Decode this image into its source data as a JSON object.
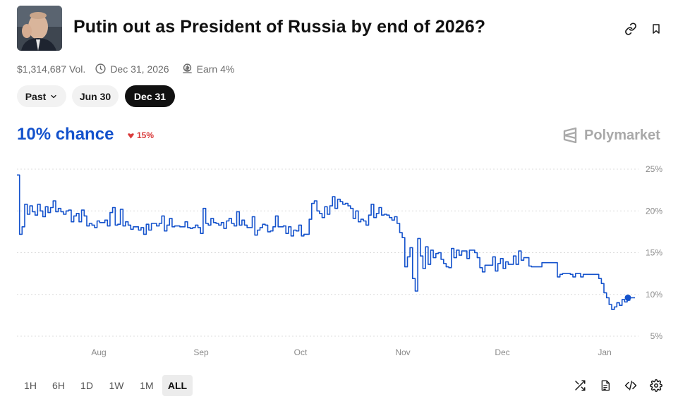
{
  "market": {
    "title": "Putin out as President of Russia by end of 2026?",
    "volume": "$1,314,687 Vol.",
    "end_date": "Dec 31, 2026",
    "earn": "Earn 4%"
  },
  "date_tabs": [
    {
      "label": "Past",
      "active": false
    },
    {
      "label": "Jun 30",
      "active": false
    },
    {
      "label": "Dec 31",
      "active": true
    }
  ],
  "probability": {
    "chance_text": "10% chance",
    "delta_text": "15%",
    "delta_direction": "down"
  },
  "brand": "Polymarket",
  "time_ranges": [
    {
      "label": "1H",
      "active": false
    },
    {
      "label": "6H",
      "active": false
    },
    {
      "label": "1D",
      "active": false
    },
    {
      "label": "1W",
      "active": false
    },
    {
      "label": "1M",
      "active": false
    },
    {
      "label": "ALL",
      "active": true
    }
  ],
  "colors": {
    "line": "#1452cc",
    "delta": "#d93a3a",
    "active_tab": "#111111"
  },
  "icons": {
    "copy_link": "link-icon",
    "bookmark": "bookmark-icon",
    "shuffle": "shuffle-icon",
    "document": "document-icon",
    "embed": "code-icon",
    "settings": "gear-icon"
  },
  "chart_data": {
    "type": "line",
    "title": "",
    "xlabel": "",
    "ylabel": "",
    "x_ticks": [
      "Aug",
      "Sep",
      "Oct",
      "Nov",
      "Dec",
      "Jan"
    ],
    "y_ticks": [
      "25%",
      "20%",
      "15%",
      "10%",
      "5%"
    ],
    "ylim": [
      5,
      25
    ],
    "grid": true,
    "series": [
      {
        "values": [
          24.3,
          17.2,
          18.1,
          20.8,
          19.6,
          20.6,
          19.9,
          19.5,
          20.8,
          20.0,
          19.3,
          20.5,
          19.8,
          20.4,
          21.2,
          19.9,
          20.3,
          19.9,
          19.6,
          20.0,
          20.1,
          18.7,
          19.4,
          19.7,
          18.7,
          20.1,
          19.4,
          18.2,
          18.5,
          18.3,
          18.0,
          18.8,
          18.6,
          18.6,
          18.9,
          18.2,
          19.8,
          20.4,
          18.3,
          18.4,
          20.2,
          18.2,
          18.7,
          18.3,
          17.8,
          18.1,
          18.1,
          17.7,
          18.0,
          17.2,
          18.4,
          17.7,
          18.5,
          18.5,
          18.2,
          18.5,
          19.4,
          17.6,
          18.3,
          19.1,
          18.1,
          18.2,
          18.2,
          18.1,
          18.1,
          18.7,
          18.0,
          17.9,
          18.0,
          18.3,
          18.0,
          17.3,
          20.3,
          18.5,
          18.3,
          19.1,
          18.6,
          18.5,
          18.3,
          18.6,
          17.9,
          18.8,
          19.1,
          18.5,
          18.2,
          19.9,
          18.3,
          18.9,
          18.3,
          18.0,
          18.0,
          19.3,
          17.1,
          17.7,
          18.0,
          18.4,
          18.3,
          17.5,
          17.6,
          18.1,
          19.4,
          18.1,
          18.1,
          18.2,
          17.3,
          18.1,
          17.0,
          17.7,
          17.6,
          18.3,
          17.0,
          17.2,
          17.2,
          19.0,
          20.9,
          21.2,
          20.0,
          19.7,
          19.2,
          20.5,
          19.6,
          20.6,
          21.7,
          20.3,
          21.4,
          21.1,
          20.8,
          20.9,
          20.6,
          20.3,
          19.1,
          20.0,
          18.7,
          19.0,
          18.8,
          18.3,
          19.5,
          20.8,
          19.2,
          19.7,
          20.4,
          19.5,
          19.6,
          19.5,
          19.2,
          18.9,
          19.3,
          18.5,
          17.4,
          16.8,
          13.3,
          14.5,
          15.6,
          11.9,
          10.4,
          16.7,
          14.6,
          13.1,
          15.7,
          13.6,
          15.3,
          14.4,
          14.9,
          15.0,
          14.2,
          13.7,
          13.3,
          13.2,
          15.5,
          14.4,
          15.3,
          14.7,
          15.2,
          15.2,
          14.3,
          15.3,
          15.3,
          15.0,
          14.4,
          13.2,
          12.7,
          13.5,
          13.5,
          13.5,
          14.5,
          12.8,
          13.7,
          14.3,
          13.1,
          13.9,
          13.6,
          13.6,
          14.6,
          13.6,
          15.2,
          14.1,
          14.4,
          14.4,
          13.4,
          13.3,
          13.3,
          13.3,
          13.3,
          13.8,
          13.8,
          13.8,
          13.8,
          13.8,
          13.8,
          12.1,
          12.4,
          12.5,
          12.5,
          12.5,
          12.4,
          12.1,
          12.5,
          12.5,
          12.1,
          12.4,
          12.4,
          12.4,
          12.4,
          12.4,
          12.4,
          11.9,
          11.3,
          10.2,
          9.6,
          8.8,
          8.2,
          8.5,
          9.0,
          8.7,
          9.4,
          9.1,
          9.3,
          9.6,
          9.6,
          9.6
        ]
      }
    ]
  }
}
